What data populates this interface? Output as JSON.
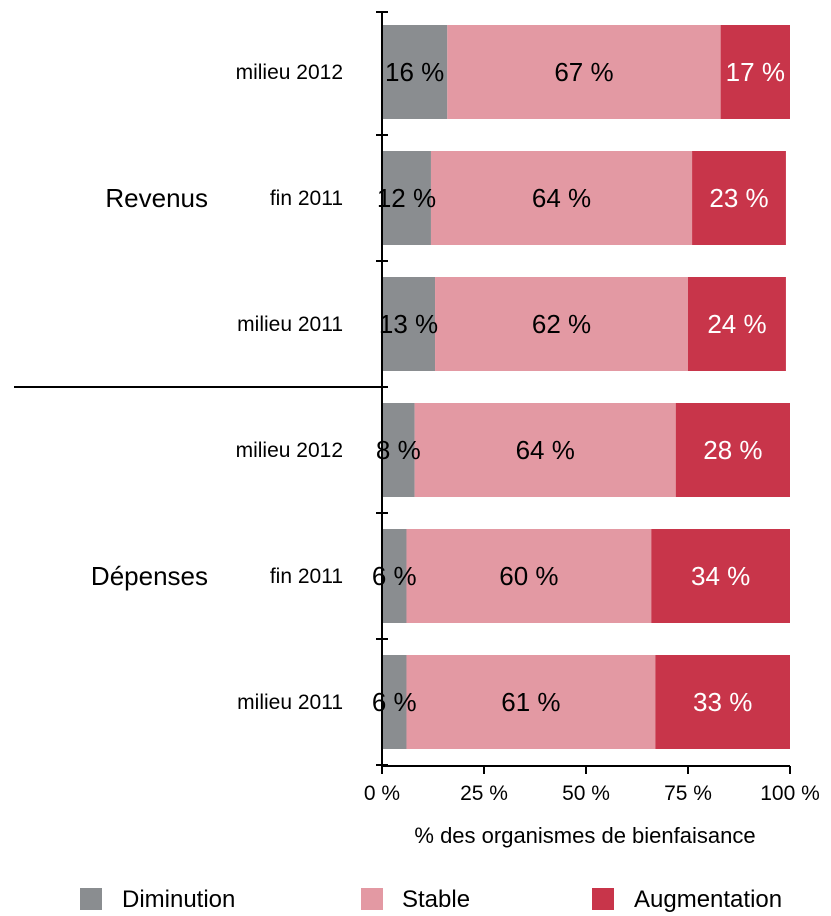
{
  "chart_data": {
    "type": "bar",
    "orientation": "horizontal",
    "stacked": true,
    "xlabel": "% des organismes de bienfaisance",
    "xlim": [
      0,
      100
    ],
    "x_ticks": [
      "0 %",
      "25 %",
      "50 %",
      "75 %",
      "100 %"
    ],
    "groups": [
      {
        "label": "Revenus",
        "rows": [
          {
            "label": "milieu 2012",
            "values": [
              16,
              67,
              17
            ]
          },
          {
            "label": "fin 2011",
            "values": [
              12,
              64,
              23
            ]
          },
          {
            "label": "milieu 2011",
            "values": [
              13,
              62,
              24
            ]
          }
        ]
      },
      {
        "label": "Dépenses",
        "rows": [
          {
            "label": "milieu 2012",
            "values": [
              8,
              64,
              28
            ]
          },
          {
            "label": "fin 2011",
            "values": [
              6,
              60,
              34
            ]
          },
          {
            "label": "milieu 2011",
            "values": [
              6,
              61,
              33
            ]
          }
        ]
      }
    ],
    "series": [
      {
        "name": "Diminution",
        "color": "#8a8d90",
        "label_color": "#000000"
      },
      {
        "name": "Stable",
        "color": "#e399a3",
        "label_color": "#000000"
      },
      {
        "name": "Augmentation",
        "color": "#c8354a",
        "label_color": "#ffffff"
      }
    ],
    "value_suffix": " %",
    "grid": false,
    "legend_position": "bottom"
  }
}
